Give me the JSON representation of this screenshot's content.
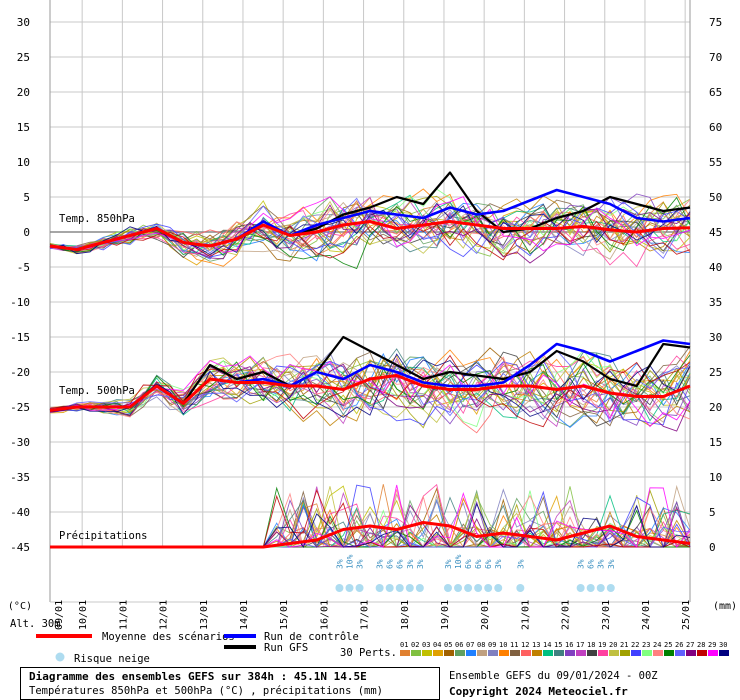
{
  "chart_data": {
    "type": "line",
    "unit_left": "(°C)",
    "unit_right": "(mm)",
    "alt_label": "Alt. 30m",
    "left_ticks": [
      30,
      25,
      20,
      15,
      10,
      5,
      0,
      -5,
      -10,
      -15,
      -20,
      -25,
      -30,
      -35,
      -40,
      -45
    ],
    "right_ticks": [
      75,
      70,
      65,
      60,
      55,
      50,
      45,
      40,
      35,
      30,
      25,
      20,
      15,
      10,
      5,
      0
    ],
    "x_dates": [
      "10/01",
      "11/01",
      "12/01",
      "13/01",
      "14/01",
      "15/01",
      "16/01",
      "17/01",
      "18/01",
      "19/01",
      "20/01",
      "21/01",
      "22/01",
      "23/01",
      "24/01",
      "25/01"
    ],
    "x_first_partial": "09/01",
    "series_labels": {
      "t850": "Temp. 850hPa",
      "t500": "Temp. 500hPa",
      "precip": "Précipitations"
    },
    "mean_t850": [
      -2,
      -2.5,
      -1.5,
      -0.5,
      0.5,
      -1.5,
      -2,
      -1,
      1,
      -0.5,
      0,
      1,
      1.5,
      0.5,
      1,
      1.5,
      1,
      0.5,
      0.5,
      0.5,
      0.8,
      0.3,
      0,
      0.5,
      0.6
    ],
    "mean_t500": [
      -25.5,
      -25,
      -25,
      -25,
      -22,
      -24.5,
      -21,
      -21.5,
      -21.5,
      -22,
      -22,
      -22.5,
      -21,
      -20.5,
      -22,
      -22.5,
      -22.5,
      -22,
      -22,
      -22.5,
      -22,
      -23,
      -23.5,
      -23.5,
      -22
    ],
    "mean_precip": [
      0,
      0,
      0,
      0,
      0,
      0,
      0,
      0,
      0,
      0.5,
      1,
      2.5,
      3,
      2.5,
      3.5,
      3,
      1.5,
      2,
      1.5,
      1,
      2,
      3,
      1.5,
      1,
      0.5
    ],
    "control_t850": [
      -2,
      -2.5,
      -1.5,
      -0.5,
      0.5,
      -1.5,
      -2,
      -1,
      1.5,
      -0.5,
      1,
      2,
      3,
      2.5,
      2,
      3.5,
      2.5,
      3,
      4.5,
      6,
      5,
      4,
      2,
      1.5,
      2
    ],
    "control_t500": [
      -25.5,
      -25,
      -25,
      -25,
      -22,
      -24.5,
      -21,
      -21.5,
      -21,
      -22,
      -20,
      -21,
      -19,
      -20,
      -21.5,
      -22,
      -22,
      -21.5,
      -19,
      -16,
      -17,
      -18.5,
      -17,
      -15.5,
      -16
    ],
    "gfs_t850": [
      -2,
      -2.5,
      -1.5,
      -0.5,
      0.5,
      -1.5,
      -2,
      -1,
      1.5,
      -0.5,
      0.5,
      2.5,
      3.5,
      5,
      4,
      8.5,
      3,
      0,
      0.5,
      2,
      3,
      5,
      4,
      3,
      3.5
    ],
    "gfs_t500": [
      -25.5,
      -25,
      -25,
      -25,
      -22,
      -24.5,
      -19,
      -21,
      -20,
      -22,
      -20,
      -15,
      -17,
      -19,
      -21,
      -20,
      -20.5,
      -21,
      -20,
      -17,
      -18.5,
      -21,
      -22,
      -16,
      -16.5
    ],
    "snow_labels": [
      {
        "x": 16.4,
        "text": "3%"
      },
      {
        "x": 16.65,
        "text": "10%"
      },
      {
        "x": 16.9,
        "text": "3%"
      },
      {
        "x": 17.4,
        "text": "3%"
      },
      {
        "x": 17.65,
        "text": "6%"
      },
      {
        "x": 17.9,
        "text": "6%"
      },
      {
        "x": 18.15,
        "text": "3%"
      },
      {
        "x": 18.4,
        "text": "3%"
      },
      {
        "x": 19.1,
        "text": "3%"
      },
      {
        "x": 19.35,
        "text": "10%"
      },
      {
        "x": 19.6,
        "text": "6%"
      },
      {
        "x": 19.85,
        "text": "6%"
      },
      {
        "x": 20.1,
        "text": "6%"
      },
      {
        "x": 20.35,
        "text": "3%"
      },
      {
        "x": 20.9,
        "text": "3%"
      },
      {
        "x": 22.4,
        "text": "3%"
      },
      {
        "x": 22.65,
        "text": "6%"
      },
      {
        "x": 22.9,
        "text": "3%"
      },
      {
        "x": 23.15,
        "text": "3%"
      }
    ],
    "colors": {
      "mean": "#ff0000",
      "control": "#0000ff",
      "gfs": "#000000",
      "grid": "#c8c8c8",
      "snow": "#aedcf0"
    }
  },
  "legend": {
    "mean": "Moyenne des scénarios",
    "control": "Run de contrôle",
    "gfs": "Run GFS",
    "snow": "Risque neige",
    "perts": "30 Perts.",
    "pert_numbers": [
      "01",
      "02",
      "03",
      "04",
      "05",
      "06",
      "07",
      "08",
      "09",
      "10",
      "11",
      "12",
      "13",
      "14",
      "15",
      "16",
      "17",
      "18",
      "19",
      "20",
      "21",
      "22",
      "23",
      "24",
      "25",
      "26",
      "27",
      "28",
      "29",
      "30"
    ],
    "pert_colors": [
      "#e08030",
      "#80c040",
      "#c0c000",
      "#e0a000",
      "#a06000",
      "#60a060",
      "#2080ff",
      "#c0a080",
      "#8080c0",
      "#ff8000",
      "#806040",
      "#ff6060",
      "#c08000",
      "#00c080",
      "#408080",
      "#8040c0",
      "#c040c0",
      "#404040",
      "#ff40a0",
      "#c0c040",
      "#a0a000",
      "#4040ff",
      "#80ff80",
      "#ff8080",
      "#008000",
      "#6060ff",
      "#800080",
      "#c00000",
      "#ff00ff",
      "#000080"
    ]
  },
  "footer": {
    "title": "Diagramme des ensembles GEFS sur 384h : 45.1N 14.5E",
    "subtitle": "Températures 850hPa et 500hPa (°C) , précipitations (mm)",
    "run": "Ensemble GEFS du 09/01/2024 - 00Z",
    "copyright": "Copyright 2024 Meteociel.fr"
  }
}
